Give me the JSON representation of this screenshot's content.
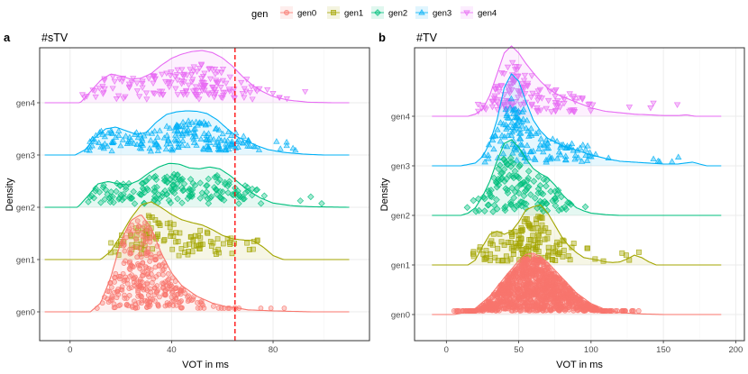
{
  "legend": {
    "title": "gen",
    "entries": [
      {
        "name": "gen0",
        "color": "#F8766D",
        "shape": "circle"
      },
      {
        "name": "gen1",
        "color": "#A3A500",
        "shape": "square"
      },
      {
        "name": "gen2",
        "color": "#00BF7D",
        "shape": "diamond"
      },
      {
        "name": "gen3",
        "color": "#00B0F6",
        "shape": "triangle-up"
      },
      {
        "name": "gen4",
        "color": "#E76BF3",
        "shape": "triangle-down"
      }
    ]
  },
  "chart_data": [
    {
      "tag": "a",
      "type": "ridgeline-density-with-points",
      "title": "#sTV",
      "xlabel": "VOT in ms",
      "ylabel": "Density",
      "xlim": [
        -12,
        118
      ],
      "xticks": [
        0,
        40,
        80
      ],
      "categories": [
        "gen0",
        "gen1",
        "gen2",
        "gen3",
        "gen4"
      ],
      "vline": {
        "x": 65,
        "color": "#FF0000",
        "style": "dashed"
      },
      "series": [
        {
          "name": "gen0",
          "n_points": 300,
          "color": "#F8766D",
          "density_x": [
            -10,
            8,
            12,
            16,
            20,
            24,
            28,
            32,
            36,
            40,
            44,
            50,
            56,
            62,
            66,
            70,
            80,
            95,
            110
          ],
          "density_y": [
            0,
            0.0,
            0.09,
            0.35,
            0.72,
            0.94,
            1.0,
            0.86,
            0.6,
            0.4,
            0.27,
            0.16,
            0.09,
            0.05,
            0.04,
            0.02,
            0.01,
            0.0,
            0.0
          ]
        },
        {
          "name": "gen1",
          "n_points": 110,
          "color": "#A3A500",
          "density_x": [
            -10,
            12,
            16,
            20,
            24,
            28,
            32,
            36,
            40,
            44,
            48,
            52,
            56,
            60,
            64,
            68,
            72,
            76,
            80,
            84,
            110
          ],
          "density_y": [
            0,
            0.0,
            0.14,
            0.42,
            0.72,
            0.95,
            1.0,
            0.9,
            0.78,
            0.69,
            0.64,
            0.6,
            0.52,
            0.42,
            0.36,
            0.34,
            0.33,
            0.22,
            0.07,
            0.0,
            0.0
          ]
        },
        {
          "name": "gen2",
          "n_points": 180,
          "color": "#00BF7D",
          "density_x": [
            -10,
            3,
            7,
            11,
            15,
            19,
            23,
            27,
            31,
            35,
            39,
            43,
            47,
            51,
            55,
            59,
            63,
            67,
            71,
            75,
            80,
            88,
            96,
            110
          ],
          "density_y": [
            0,
            0.0,
            0.24,
            0.5,
            0.55,
            0.5,
            0.48,
            0.57,
            0.73,
            0.86,
            0.94,
            0.92,
            0.84,
            0.82,
            0.86,
            0.82,
            0.68,
            0.5,
            0.33,
            0.2,
            0.09,
            0.03,
            0.01,
            0.0
          ]
        },
        {
          "name": "gen3",
          "n_points": 200,
          "color": "#00B0F6",
          "density_x": [
            -10,
            2,
            6,
            10,
            14,
            18,
            22,
            26,
            30,
            34,
            38,
            42,
            46,
            50,
            54,
            58,
            62,
            66,
            70,
            74,
            78,
            84,
            92,
            100,
            110
          ],
          "density_y": [
            0,
            0.0,
            0.12,
            0.4,
            0.58,
            0.62,
            0.54,
            0.46,
            0.5,
            0.73,
            0.9,
            0.96,
            0.98,
            0.97,
            0.92,
            0.78,
            0.58,
            0.4,
            0.3,
            0.2,
            0.12,
            0.06,
            0.02,
            0.0,
            0.0
          ]
        },
        {
          "name": "gen4",
          "n_points": 170,
          "color": "#E76BF3",
          "density_x": [
            -10,
            4,
            8,
            12,
            16,
            20,
            24,
            28,
            32,
            36,
            40,
            44,
            48,
            52,
            56,
            60,
            64,
            68,
            72,
            76,
            80,
            86,
            94,
            104,
            110
          ],
          "density_y": [
            0,
            0.0,
            0.21,
            0.43,
            0.55,
            0.51,
            0.45,
            0.47,
            0.56,
            0.72,
            0.85,
            0.93,
            0.98,
            1.0,
            0.96,
            0.86,
            0.7,
            0.5,
            0.33,
            0.21,
            0.12,
            0.05,
            0.01,
            0.0,
            0.0
          ]
        }
      ]
    },
    {
      "tag": "b",
      "type": "ridgeline-density-with-points",
      "title": "#TV",
      "xlabel": "VOT in ms",
      "ylabel": "Density",
      "xlim": [
        -22,
        206
      ],
      "xticks": [
        0,
        50,
        100,
        150,
        200
      ],
      "categories": [
        "gen0",
        "gen1",
        "gen2",
        "gen3",
        "gen4"
      ],
      "series": [
        {
          "name": "gen0",
          "n_points": 1200,
          "color": "#F8766D",
          "density_x": [
            -10,
            5,
            10,
            20,
            30,
            40,
            50,
            55,
            60,
            65,
            70,
            80,
            90,
            100,
            110,
            120,
            135,
            150,
            190
          ],
          "density_y": [
            0,
            0.0,
            0.02,
            0.1,
            0.3,
            0.6,
            0.88,
            0.98,
            1.0,
            0.95,
            0.85,
            0.6,
            0.35,
            0.18,
            0.08,
            0.03,
            0.01,
            0.0,
            0.0
          ]
        },
        {
          "name": "gen1",
          "n_points": 140,
          "color": "#A3A500",
          "density_x": [
            -10,
            15,
            20,
            25,
            30,
            35,
            40,
            45,
            50,
            55,
            60,
            65,
            70,
            75,
            80,
            85,
            90,
            95,
            100,
            105,
            110,
            115,
            120,
            125,
            130,
            135,
            140,
            145,
            190
          ],
          "density_y": [
            0,
            0.0,
            0.08,
            0.3,
            0.5,
            0.55,
            0.5,
            0.55,
            0.7,
            0.9,
            0.95,
            0.98,
            0.85,
            0.65,
            0.45,
            0.3,
            0.2,
            0.12,
            0.1,
            0.08,
            0.05,
            0.04,
            0.05,
            0.1,
            0.16,
            0.12,
            0.05,
            0.0,
            0.0
          ]
        },
        {
          "name": "gen2",
          "n_points": 130,
          "color": "#00BF7D",
          "density_x": [
            -10,
            10,
            15,
            20,
            25,
            30,
            35,
            40,
            45,
            50,
            55,
            60,
            65,
            70,
            75,
            80,
            85,
            90,
            95,
            100,
            110,
            120,
            190
          ],
          "density_y": [
            0,
            0.0,
            0.03,
            0.1,
            0.25,
            0.45,
            0.72,
            0.95,
            1.0,
            0.9,
            0.75,
            0.62,
            0.55,
            0.5,
            0.4,
            0.28,
            0.18,
            0.1,
            0.06,
            0.03,
            0.01,
            0.0,
            0.0
          ]
        },
        {
          "name": "gen3",
          "n_points": 150,
          "color": "#00B0F6",
          "density_x": [
            -10,
            10,
            20,
            25,
            30,
            35,
            40,
            45,
            50,
            55,
            60,
            65,
            70,
            80,
            90,
            100,
            110,
            120,
            130,
            140,
            150,
            160,
            165,
            170,
            175,
            180,
            190
          ],
          "density_y": [
            0,
            0.0,
            0.03,
            0.1,
            0.25,
            0.5,
            0.85,
            1.0,
            0.92,
            0.7,
            0.5,
            0.38,
            0.3,
            0.22,
            0.17,
            0.12,
            0.08,
            0.05,
            0.04,
            0.03,
            0.02,
            0.02,
            0.03,
            0.04,
            0.02,
            0.0,
            0.0
          ]
        },
        {
          "name": "gen4",
          "n_points": 140,
          "color": "#E76BF3",
          "density_x": [
            -10,
            15,
            20,
            25,
            30,
            35,
            40,
            45,
            50,
            55,
            60,
            65,
            70,
            75,
            80,
            85,
            90,
            95,
            100,
            110,
            120,
            130,
            140,
            150,
            160,
            166,
            172,
            190
          ],
          "density_y": [
            0,
            0.0,
            0.03,
            0.1,
            0.3,
            0.6,
            0.9,
            1.0,
            0.9,
            0.75,
            0.62,
            0.5,
            0.4,
            0.33,
            0.28,
            0.24,
            0.2,
            0.16,
            0.12,
            0.07,
            0.05,
            0.03,
            0.02,
            0.01,
            0.01,
            0.02,
            0.0,
            0.0
          ]
        }
      ]
    }
  ]
}
